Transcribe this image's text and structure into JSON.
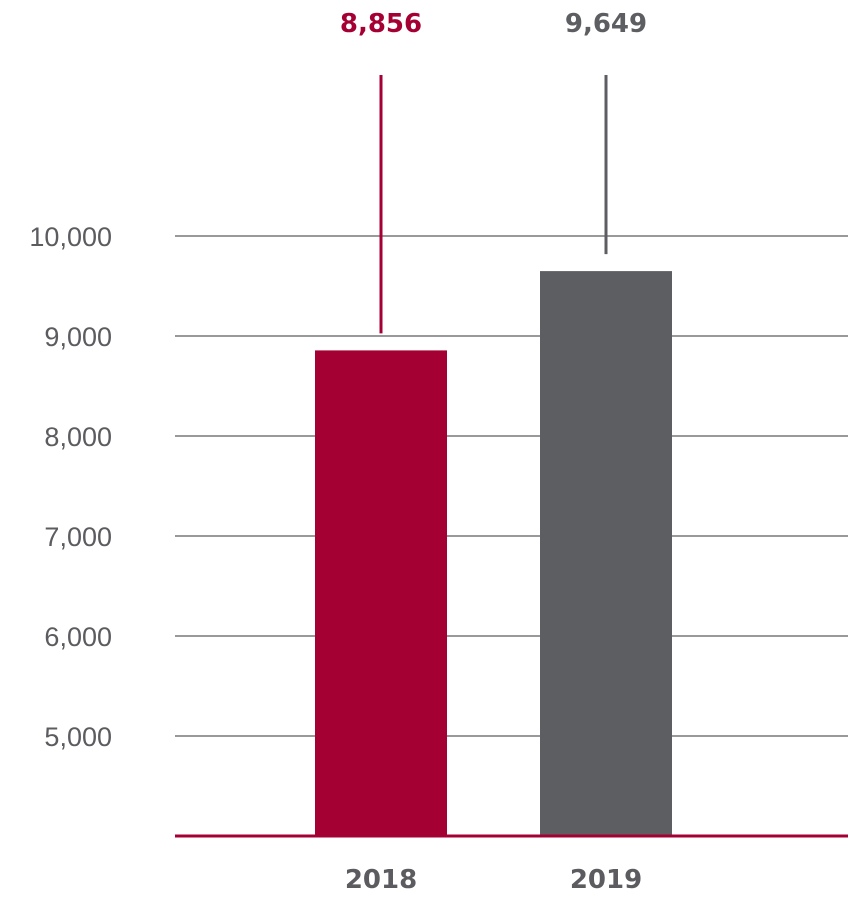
{
  "chart_data": {
    "type": "bar",
    "categories": [
      "2018",
      "2019"
    ],
    "values": [
      8856,
      9649
    ],
    "value_labels": [
      "8,856",
      "9,649"
    ],
    "yticks": [
      {
        "value": 5000,
        "label": "5,000"
      },
      {
        "value": 6000,
        "label": "6,000"
      },
      {
        "value": 7000,
        "label": "7,000"
      },
      {
        "value": 8000,
        "label": "8,000"
      },
      {
        "value": 9000,
        "label": "9,000"
      },
      {
        "value": 10000,
        "label": "10,000"
      }
    ],
    "ylim": [
      4000,
      11000
    ],
    "grid": true,
    "colors": [
      "#a50034",
      "#5d5e62"
    ],
    "gridline_color": "#5c5c60",
    "baseline_color": "#a50034",
    "title": "",
    "xlabel": "",
    "ylabel": ""
  }
}
